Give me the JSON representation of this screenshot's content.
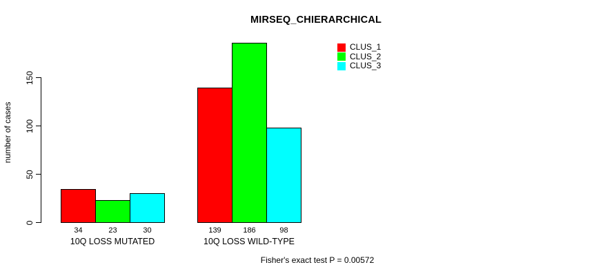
{
  "chart_data": {
    "type": "bar",
    "title": "MIRSEQ_CHIERARCHICAL",
    "categories": [
      "10Q LOSS MUTATED",
      "10Q LOSS WILD-TYPE"
    ],
    "series": [
      {
        "name": "CLUS_1",
        "color": "#ff0000",
        "values": [
          34,
          139
        ]
      },
      {
        "name": "CLUS_2",
        "color": "#00ff00",
        "values": [
          23,
          186
        ]
      },
      {
        "name": "CLUS_3",
        "color": "#00ffff",
        "values": [
          30,
          98
        ]
      }
    ],
    "bar_value_labels": [
      [
        34,
        23,
        30
      ],
      [
        139,
        186,
        98
      ]
    ],
    "xlabel": "",
    "ylabel": "number of cases",
    "yticks": [
      0,
      50,
      100,
      150
    ],
    "ylim": [
      0,
      200
    ],
    "grid": false,
    "legend_position": "top-right",
    "annotation": "Fisher's exact test P = 0.00572",
    "axis_color": "#000000",
    "bar_border_color": "#000000",
    "background_color": "#ffffff"
  }
}
